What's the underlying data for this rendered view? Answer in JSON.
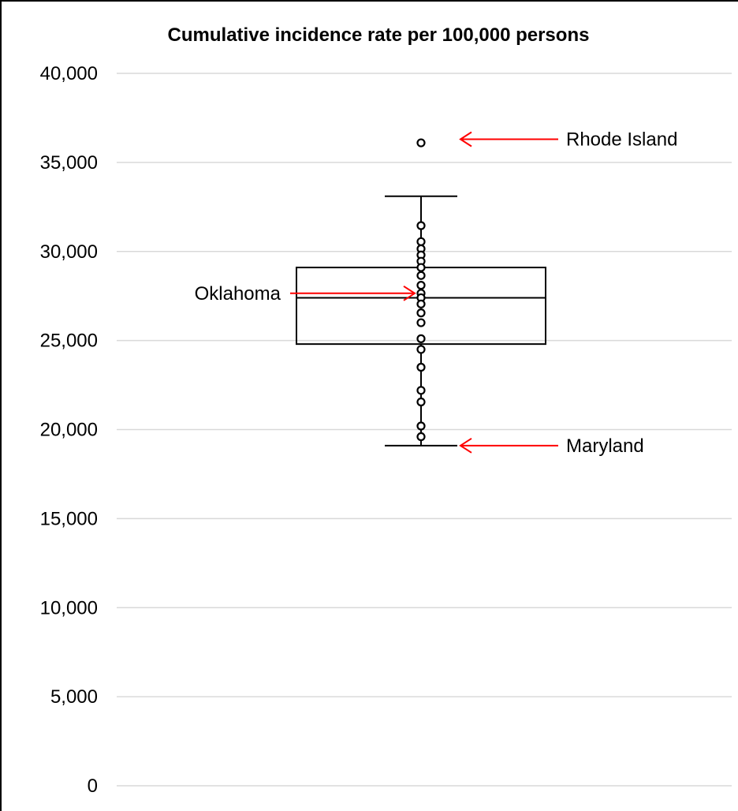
{
  "chart_data": {
    "type": "box",
    "title": "Cumulative incidence rate per 100,000 persons",
    "xlabel": "",
    "ylabel": "",
    "ylim": [
      0,
      40000
    ],
    "yticks": [
      0,
      5000,
      10000,
      15000,
      20000,
      25000,
      30000,
      35000,
      40000
    ],
    "ytick_labels": [
      "0",
      "5,000",
      "10,000",
      "15,000",
      "20,000",
      "25,000",
      "30,000",
      "35,000",
      "40,000"
    ],
    "grid": true,
    "box": {
      "whisker_low": 19100,
      "q1": 24800,
      "median": 27400,
      "q3": 29100,
      "whisker_high": 33100
    },
    "points": [
      36100,
      31450,
      30550,
      30150,
      29800,
      29450,
      29100,
      28650,
      28100,
      27650,
      27400,
      27050,
      26550,
      26000,
      25100,
      24500,
      23500,
      22200,
      21550,
      20200,
      19600
    ],
    "annotations": [
      {
        "label": "Rhode Island",
        "value": 36300,
        "side": "right"
      },
      {
        "label": "Oklahoma",
        "value": 27650,
        "side": "left"
      },
      {
        "label": "Maryland",
        "value": 19100,
        "side": "right"
      }
    ],
    "colors": {
      "grid": "#d9d9d9",
      "box": "#000000",
      "arrow": "#ff0000"
    }
  }
}
